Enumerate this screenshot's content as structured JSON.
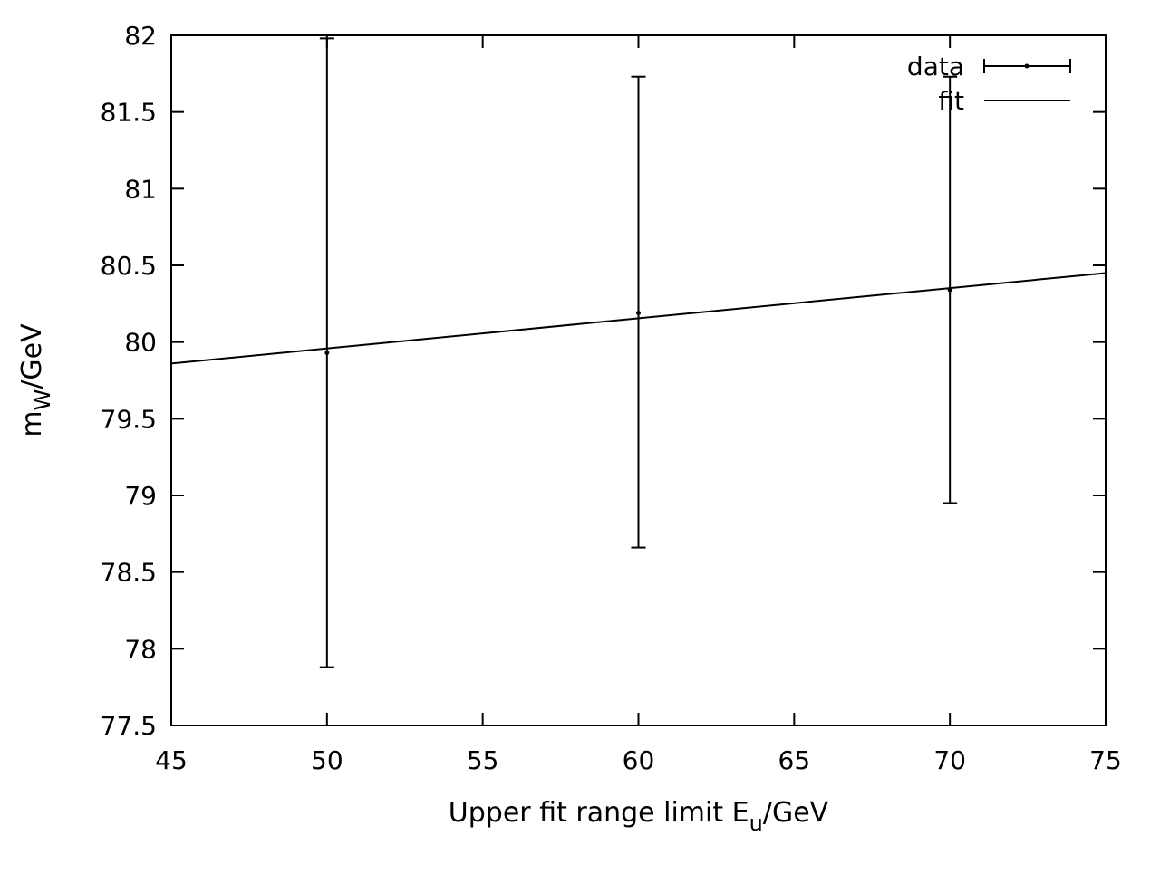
{
  "chart_data": {
    "type": "scatter",
    "title": "",
    "xlabel": {
      "main": "Upper fit range limit E",
      "sub": "u",
      "suffix": "/GeV"
    },
    "ylabel": {
      "main": "m",
      "sub": "W",
      "suffix": "/GeV"
    },
    "xlim": [
      45,
      75
    ],
    "ylim": [
      77.5,
      82
    ],
    "x_ticks": [
      "45",
      "50",
      "55",
      "60",
      "65",
      "70",
      "75"
    ],
    "y_ticks": [
      "77.5",
      "78",
      "78.5",
      "79",
      "79.5",
      "80",
      "80.5",
      "81",
      "81.5",
      "82"
    ],
    "grid": false,
    "legend_position": "top-right",
    "legend": [
      {
        "label": "data",
        "style": "errorbar"
      },
      {
        "label": "fit",
        "style": "line"
      }
    ],
    "series": [
      {
        "name": "data",
        "type": "errorbar",
        "points": [
          {
            "x": 50,
            "y": 79.93,
            "ylow": 77.88,
            "yhigh": 81.98
          },
          {
            "x": 60,
            "y": 80.19,
            "ylow": 78.66,
            "yhigh": 81.73
          },
          {
            "x": 70,
            "y": 80.34,
            "ylow": 78.95,
            "yhigh": 81.73
          }
        ]
      },
      {
        "name": "fit",
        "type": "line",
        "x": [
          45,
          75
        ],
        "y": [
          79.86,
          80.45
        ]
      }
    ],
    "colors": {
      "axis": "#000000",
      "data": "#000000",
      "fit": "#000000"
    }
  }
}
